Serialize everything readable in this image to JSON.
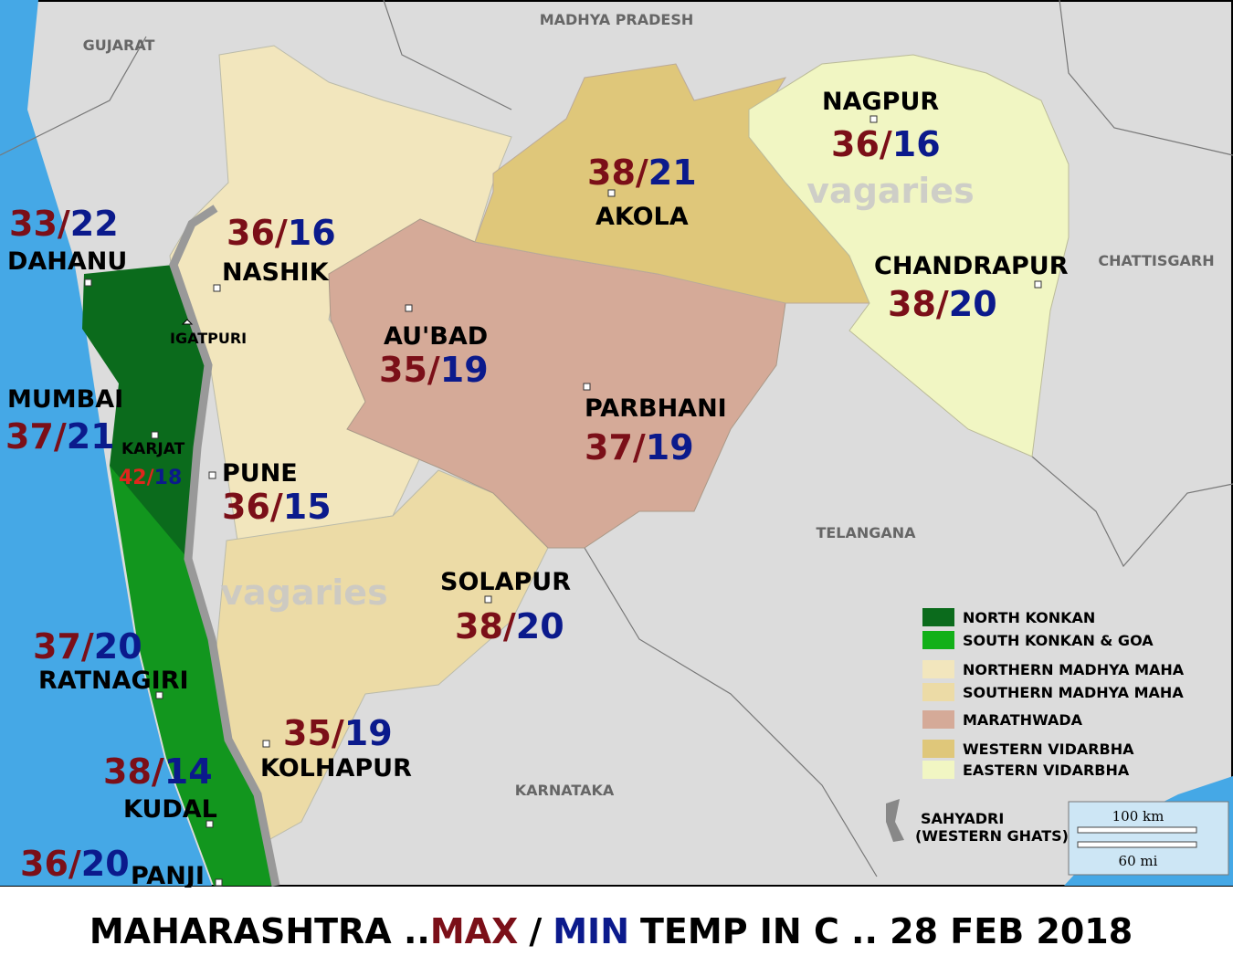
{
  "map": {
    "neighbors": [
      "MADHYA PRADESH",
      "GUJARAT",
      "CHATTISGARH",
      "TELANGANA",
      "KARNATAKA"
    ],
    "watermark": "vagaries",
    "separator": "/",
    "stations": [
      {
        "name": "DAHANU",
        "max": 33,
        "min": 22
      },
      {
        "name": "NASHIK",
        "max": 36,
        "min": 16
      },
      {
        "name": "AKOLA",
        "max": 38,
        "min": 21
      },
      {
        "name": "NAGPUR",
        "max": 36,
        "min": 16
      },
      {
        "name": "CHANDRAPUR",
        "max": 38,
        "min": 20
      },
      {
        "name": "AU'BAD",
        "max": 35,
        "min": 19
      },
      {
        "name": "PARBHANI",
        "max": 37,
        "min": 19
      },
      {
        "name": "MUMBAI",
        "max": 37,
        "min": 21
      },
      {
        "name": "KARJAT",
        "max": 42,
        "min": 18
      },
      {
        "name": "PUNE",
        "max": 36,
        "min": 15
      },
      {
        "name": "SOLAPUR",
        "max": 38,
        "min": 20
      },
      {
        "name": "RATNAGIRI",
        "max": 37,
        "min": 20
      },
      {
        "name": "KOLHAPUR",
        "max": 35,
        "min": 19
      },
      {
        "name": "KUDAL",
        "max": 38,
        "min": 14
      },
      {
        "name": "PANJI",
        "max": 36,
        "min": 20
      }
    ],
    "places": [
      "IGATPURI"
    ],
    "legend": [
      {
        "label": "NORTH KONKAN",
        "color": "#0b6b1c"
      },
      {
        "label": "SOUTH KONKAN & GOA",
        "color": "#12b018"
      },
      {
        "label": "NORTHERN MADHYA MAHA",
        "color": "#f2e6bd"
      },
      {
        "label": "SOUTHERN MADHYA MAHA",
        "color": "#ecdba6"
      },
      {
        "label": "MARATHWADA",
        "color": "#d5aa98"
      },
      {
        "label": "WESTERN VIDARBHA",
        "color": "#dfc77a"
      },
      {
        "label": "EASTERN VIDARBHA",
        "color": "#f1f6c3"
      }
    ],
    "ghats_label": [
      "SAHYADRI",
      "(WESTERN GHATS)"
    ],
    "scale": [
      "100 km",
      "60 mi"
    ]
  },
  "title": {
    "prefix": "MAHARASHTRA ..",
    "max": "MAX",
    "separator": "/",
    "min": "MIN",
    "suffix": "TEMP IN C .. 28 FEB 2018"
  }
}
